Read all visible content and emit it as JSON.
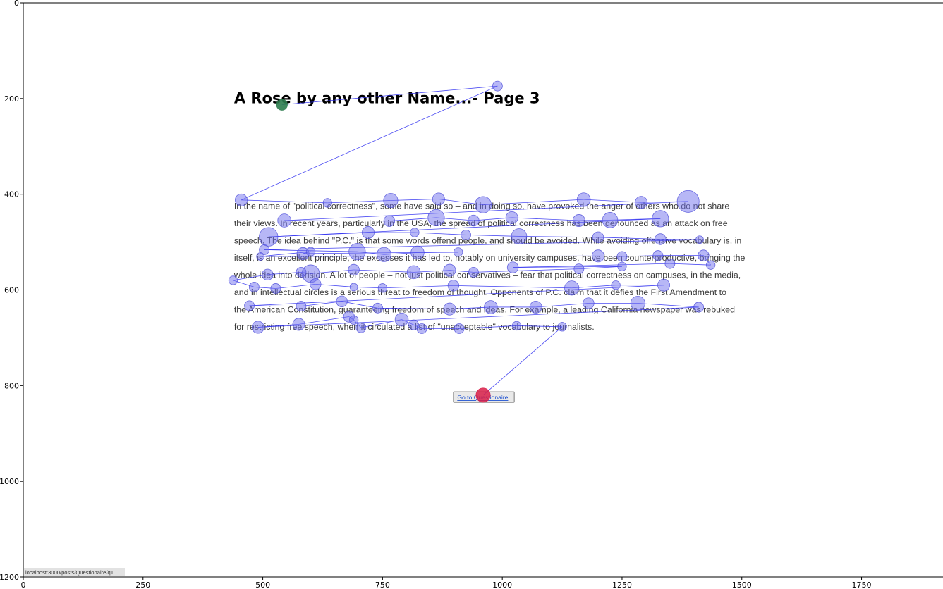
{
  "page": {
    "title": "A Rose by any other Name...- Page 3",
    "paragraph_lines": [
      "In the name of \"political correctness\", some have said so – and in doing so, have provoked the anger of others who do not share",
      "their views. In recent years, particularly in the USA, the spread of political correctness has been denounced as an attack on free",
      "speech. The idea behind \"P.C.\" is that some words offend people, and should be avoided. While avoiding offensive vocabulary is, in",
      "itself, is an excellent principle, the excesses it has led to, notably on university campuses, have been counterproductive, bringing the",
      "whole idea into derision. A lot of people – not just political conservatives – fear that political correctness on campuses, in the media,",
      "and in intellectual circles is a serious threat to freedom of thought. Opponents of P.C. claim that it defies the First Amendment to",
      "the American Constitution, guaranteeing freedom of speech and ideas. For example, a leading California newspaper was rebuked",
      "for restricting free speech, when it circulated a list of \"unacceptable\" vocabulary to journalists."
    ],
    "button_label": "Go to Questionaire",
    "status_url": "localhost:3000/posts/Questionaire/q1"
  },
  "chart_data": {
    "type": "scatter",
    "title": "",
    "xlabel": "",
    "ylabel": "",
    "xlim": [
      0,
      1920
    ],
    "ylim": [
      1200,
      0
    ],
    "xticks": [
      0,
      250,
      500,
      750,
      1000,
      1250,
      1500,
      1750
    ],
    "yticks": [
      0,
      200,
      400,
      600,
      800,
      1000,
      1200
    ],
    "grid": false,
    "series": [
      {
        "points": [
          [
            540,
            213,
            10
          ],
          [
            990,
            174,
            9
          ],
          [
            455,
            412,
            11
          ],
          [
            635,
            418,
            8
          ],
          [
            767,
            413,
            13
          ],
          [
            867,
            410,
            11
          ],
          [
            960,
            422,
            15
          ],
          [
            1170,
            411,
            12
          ],
          [
            1290,
            417,
            11
          ],
          [
            1388,
            415,
            20
          ],
          [
            545,
            455,
            12
          ],
          [
            764,
            456,
            10
          ],
          [
            862,
            449,
            15
          ],
          [
            940,
            455,
            10
          ],
          [
            1020,
            449,
            11
          ],
          [
            1160,
            455,
            11
          ],
          [
            1225,
            454,
            14
          ],
          [
            1330,
            451,
            15
          ],
          [
            512,
            489,
            17
          ],
          [
            720,
            480,
            11
          ],
          [
            817,
            480,
            8
          ],
          [
            924,
            485,
            9
          ],
          [
            1035,
            488,
            14
          ],
          [
            1200,
            490,
            10
          ],
          [
            1330,
            494,
            10
          ],
          [
            1412,
            495,
            7
          ],
          [
            503,
            516,
            9
          ],
          [
            697,
            520,
            15
          ],
          [
            753,
            526,
            13
          ],
          [
            823,
            522,
            12
          ],
          [
            908,
            521,
            8
          ],
          [
            584,
            524,
            11
          ],
          [
            600,
            520,
            8
          ],
          [
            495,
            530,
            7
          ],
          [
            1200,
            529,
            11
          ],
          [
            1250,
            530,
            9
          ],
          [
            1325,
            528,
            9
          ],
          [
            1420,
            528,
            10
          ],
          [
            1435,
            548,
            8
          ],
          [
            1350,
            545,
            9
          ],
          [
            1022,
            553,
            10
          ],
          [
            1250,
            551,
            8
          ],
          [
            1160,
            556,
            9
          ],
          [
            940,
            563,
            9
          ],
          [
            890,
            559,
            11
          ],
          [
            815,
            563,
            12
          ],
          [
            690,
            558,
            10
          ],
          [
            600,
            566,
            16
          ],
          [
            580,
            563,
            9
          ],
          [
            510,
            568,
            10
          ],
          [
            438,
            580,
            8
          ],
          [
            482,
            594,
            9
          ],
          [
            527,
            597,
            9
          ],
          [
            610,
            588,
            10
          ],
          [
            690,
            594,
            7
          ],
          [
            750,
            596,
            8
          ],
          [
            898,
            591,
            10
          ],
          [
            1145,
            596,
            13
          ],
          [
            1237,
            590,
            8
          ],
          [
            1337,
            590,
            11
          ],
          [
            472,
            633,
            9
          ],
          [
            580,
            634,
            9
          ],
          [
            665,
            624,
            10
          ],
          [
            740,
            638,
            9
          ],
          [
            890,
            640,
            11
          ],
          [
            976,
            636,
            12
          ],
          [
            1070,
            636,
            11
          ],
          [
            1180,
            628,
            10
          ],
          [
            1283,
            628,
            13
          ],
          [
            1410,
            636,
            9
          ],
          [
            490,
            678,
            11
          ],
          [
            575,
            672,
            11
          ],
          [
            680,
            656,
            10
          ],
          [
            690,
            663,
            8
          ],
          [
            705,
            679,
            9
          ],
          [
            790,
            662,
            12
          ],
          [
            815,
            673,
            9
          ],
          [
            832,
            681,
            9
          ],
          [
            910,
            681,
            9
          ],
          [
            1030,
            675,
            8
          ],
          [
            1125,
            677,
            8
          ],
          [
            960,
            820,
            13
          ]
        ]
      }
    ],
    "colors": {
      "fixation_fill": "#7070ee",
      "path_line": "#2a2af0",
      "start_marker": "#2e7d4f",
      "end_marker": "#d81e48",
      "axis": "#000000"
    }
  }
}
